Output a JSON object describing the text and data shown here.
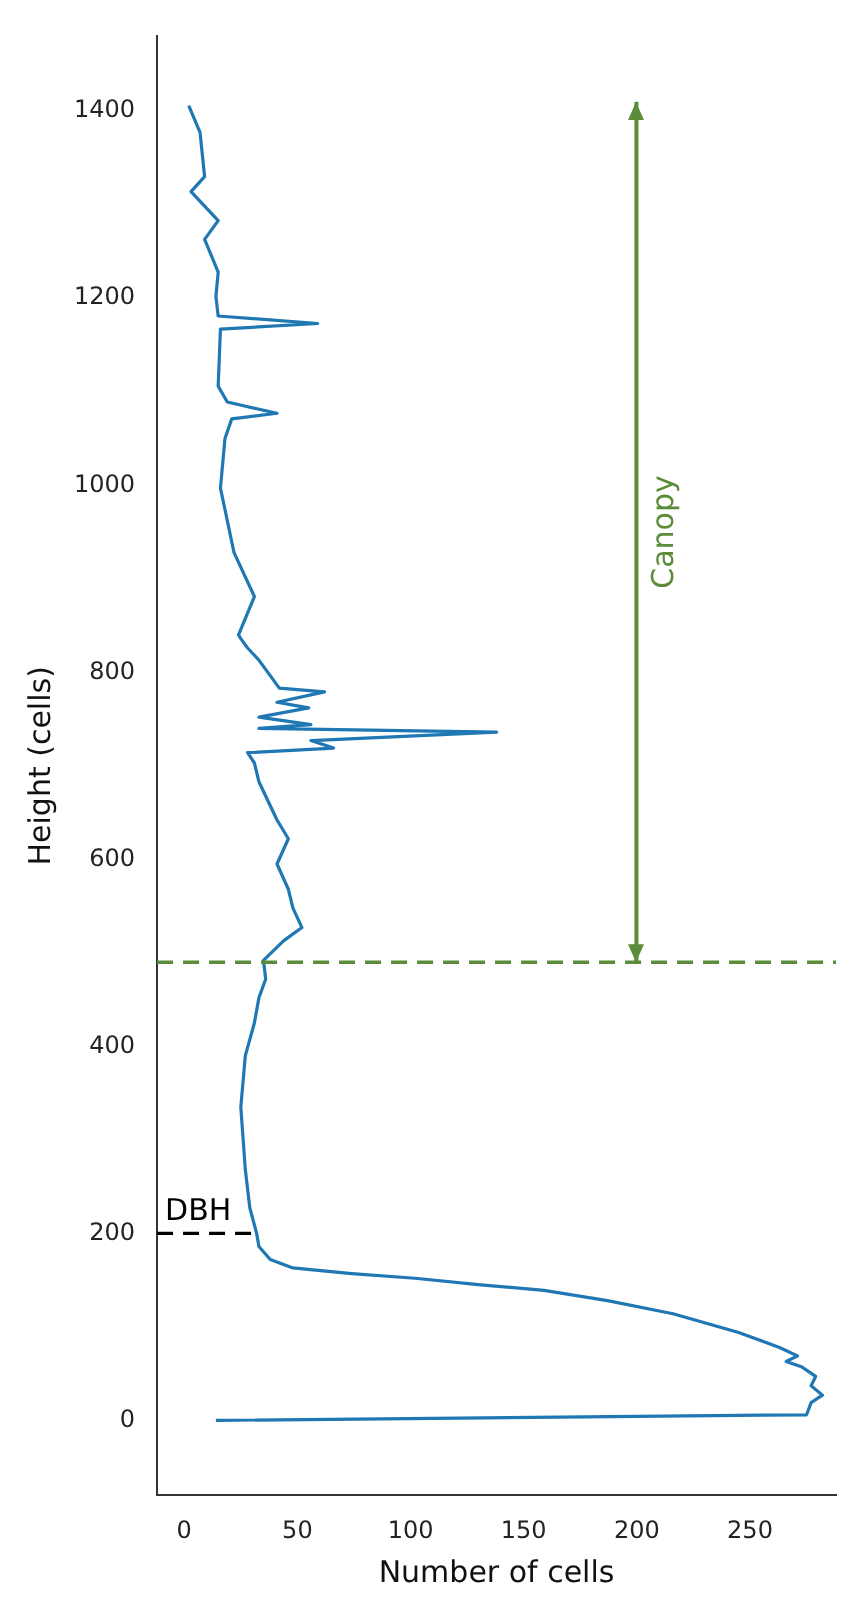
{
  "chart_data": {
    "type": "line",
    "xlabel": "Number of cells",
    "ylabel": "Height (cells)",
    "xlim": [
      -12,
      288
    ],
    "ylim": [
      -80,
      1480
    ],
    "xticks": [
      0,
      50,
      100,
      150,
      200,
      250
    ],
    "yticks": [
      0,
      200,
      400,
      600,
      800,
      1000,
      1200,
      1400
    ],
    "grid": false,
    "legend": false,
    "marker": "none",
    "series": [
      {
        "color": "#1f77b4",
        "line_style": "solid",
        "x": [
          14,
          275,
          277,
          282,
          277,
          279,
          273,
          266,
          271,
          263,
          245,
          216,
          187,
          159,
          131,
          102,
          74,
          48,
          38,
          33,
          32,
          29,
          27,
          25,
          27,
          31,
          33,
          36,
          35,
          44,
          52,
          48,
          46,
          41,
          46,
          41,
          33,
          31,
          28,
          66,
          56,
          138,
          33,
          56,
          33,
          55,
          41,
          62,
          42,
          33,
          28,
          25,
          24,
          31,
          22,
          16,
          18,
          21,
          41,
          19,
          15,
          16,
          59,
          15,
          14,
          15,
          9,
          15,
          3,
          9,
          7,
          2
        ],
        "values": [
          0,
          6,
          19,
          27,
          37,
          47,
          57,
          63,
          69,
          78,
          94,
          114,
          128,
          139,
          145,
          152,
          157,
          163,
          172,
          186,
          200,
          227,
          268,
          335,
          390,
          425,
          452,
          472,
          492,
          513,
          527,
          548,
          568,
          595,
          622,
          642,
          683,
          703,
          714,
          719,
          727,
          736,
          740,
          744,
          752,
          762,
          768,
          779,
          783,
          813,
          826,
          836,
          840,
          881,
          928,
          997,
          1050,
          1071,
          1077,
          1089,
          1106,
          1167,
          1173,
          1181,
          1202,
          1228,
          1263,
          1283,
          1314,
          1330,
          1377,
          1406
        ]
      },
      {
        "name": "DBH",
        "color": "#000000",
        "line_style": "dashed",
        "x": [
          -12,
          32
        ],
        "values": [
          200,
          200
        ]
      },
      {
        "name": "Canopy",
        "color": "#5b8c3a",
        "line_style": "solid",
        "x": [
          200,
          200
        ],
        "values": [
          490,
          1410
        ]
      }
    ],
    "ref_lines": [
      {
        "axis": "y",
        "value": 490,
        "color": "#5b8c3a",
        "line_style": "dashed"
      }
    ]
  }
}
